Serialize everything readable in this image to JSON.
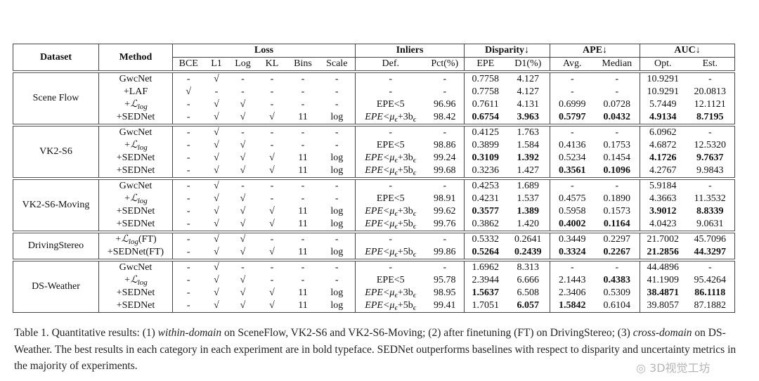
{
  "table": {
    "group_headers": {
      "dataset": "Dataset",
      "method": "Method",
      "loss": "Loss",
      "inliers": "Inliers",
      "disparity": "Disparity↓",
      "ape": "APE↓",
      "auc": "AUC↓"
    },
    "sub_headers": [
      "BCE",
      "L1",
      "Log",
      "KL",
      "Bins",
      "Scale",
      "Def.",
      "Pct(%)",
      "EPE",
      "D1(%)",
      "Avg.",
      "Median",
      "Opt.",
      "Est."
    ],
    "groups": [
      {
        "dataset": "Scene Flow",
        "rows": [
          {
            "method": "GwcNet",
            "cells": [
              "-",
              "√",
              "-",
              "-",
              "-",
              "-",
              "-",
              "-",
              "0.7758",
              "4.127",
              "-",
              "-",
              "10.9291",
              "-"
            ],
            "bold": []
          },
          {
            "method": "+LAF",
            "cells": [
              "√",
              "-",
              "-",
              "-",
              "-",
              "-",
              "-",
              "-",
              "0.7758",
              "4.127",
              "-",
              "-",
              "10.9291",
              "20.0813"
            ],
            "bold": []
          },
          {
            "method": "+ℒ_log",
            "cells": [
              "-",
              "√",
              "√",
              "-",
              "-",
              "-",
              "EPE<5",
              "96.96",
              "0.7611",
              "4.131",
              "0.6999",
              "0.0728",
              "5.7449",
              "12.1121"
            ],
            "bold": []
          },
          {
            "method": "+SEDNet",
            "cells": [
              "-",
              "√",
              "√",
              "√",
              "11",
              "log",
              "EPE<μ_ϵ+3b_ϵ",
              "98.42",
              "0.6754",
              "3.963",
              "0.5797",
              "0.0432",
              "4.9134",
              "8.7195"
            ],
            "bold": [
              8,
              9,
              10,
              11,
              12,
              13
            ]
          }
        ]
      },
      {
        "dataset": "VK2-S6",
        "rows": [
          {
            "method": "GwcNet",
            "cells": [
              "-",
              "√",
              "-",
              "-",
              "-",
              "-",
              "-",
              "-",
              "0.4125",
              "1.763",
              "-",
              "-",
              "6.0962",
              "-"
            ],
            "bold": []
          },
          {
            "method": "+ℒ_log",
            "cells": [
              "-",
              "√",
              "√",
              "-",
              "-",
              "-",
              "EPE<5",
              "98.86",
              "0.3899",
              "1.584",
              "0.4136",
              "0.1753",
              "4.6872",
              "12.5320"
            ],
            "bold": []
          },
          {
            "method": "+SEDNet",
            "cells": [
              "-",
              "√",
              "√",
              "√",
              "11",
              "log",
              "EPE<μ_ϵ+3b_ϵ",
              "99.24",
              "0.3109",
              "1.392",
              "0.5234",
              "0.1454",
              "4.1726",
              "9.7637"
            ],
            "bold": [
              8,
              9,
              12,
              13
            ]
          },
          {
            "method": "+SEDNet",
            "cells": [
              "-",
              "√",
              "√",
              "√",
              "11",
              "log",
              "EPE<μ_ϵ+5b_ϵ",
              "99.68",
              "0.3236",
              "1.427",
              "0.3561",
              "0.1096",
              "4.2767",
              "9.9843"
            ],
            "bold": [
              10,
              11
            ]
          }
        ]
      },
      {
        "dataset": "VK2-S6-Moving",
        "rows": [
          {
            "method": "GwcNet",
            "cells": [
              "-",
              "√",
              "-",
              "-",
              "-",
              "-",
              "-",
              "-",
              "0.4253",
              "1.689",
              "-",
              "-",
              "5.9184",
              "-"
            ],
            "bold": []
          },
          {
            "method": "+ℒ_log",
            "cells": [
              "-",
              "√",
              "√",
              "-",
              "-",
              "-",
              "EPE<5",
              "98.91",
              "0.4231",
              "1.537",
              "0.4575",
              "0.1890",
              "4.3663",
              "11.3532"
            ],
            "bold": []
          },
          {
            "method": "+SEDNet",
            "cells": [
              "-",
              "√",
              "√",
              "√",
              "11",
              "log",
              "EPE<μ_ϵ+3b_ϵ",
              "99.62",
              "0.3577",
              "1.389",
              "0.5958",
              "0.1573",
              "3.9012",
              "8.8339"
            ],
            "bold": [
              8,
              9,
              12,
              13
            ]
          },
          {
            "method": "+SEDNet",
            "cells": [
              "-",
              "√",
              "√",
              "√",
              "11",
              "log",
              "EPE<μ_ϵ+5b_ϵ",
              "99.76",
              "0.3862",
              "1.420",
              "0.4002",
              "0.1164",
              "4.0423",
              "9.0631"
            ],
            "bold": [
              10,
              11
            ]
          }
        ]
      },
      {
        "dataset": "DrivingStereo",
        "rows": [
          {
            "method": "+ℒ_log(FT)",
            "cells": [
              "-",
              "√",
              "√",
              "-",
              "-",
              "-",
              "-",
              "-",
              "0.5332",
              "0.2641",
              "0.3449",
              "0.2297",
              "21.7002",
              "45.7096"
            ],
            "bold": []
          },
          {
            "method": "+SEDNet(FT)",
            "cells": [
              "-",
              "√",
              "√",
              "√",
              "11",
              "log",
              "EPE<μ_ϵ+5b_ϵ",
              "99.86",
              "0.5264",
              "0.2439",
              "0.3324",
              "0.2267",
              "21.2856",
              "44.3297"
            ],
            "bold": [
              8,
              9,
              10,
              11,
              12,
              13
            ]
          }
        ]
      },
      {
        "dataset": "DS-Weather",
        "rows": [
          {
            "method": "GwcNet",
            "cells": [
              "-",
              "√",
              "-",
              "-",
              "-",
              "-",
              "-",
              "-",
              "1.6962",
              "8.313",
              "-",
              "-",
              "44.4896",
              "-"
            ],
            "bold": []
          },
          {
            "method": "+ℒ_log",
            "cells": [
              "-",
              "√",
              "√",
              "-",
              "-",
              "-",
              "EPE<5",
              "95.78",
              "2.3944",
              "6.666",
              "2.1443",
              "0.4383",
              "41.1909",
              "95.4264"
            ],
            "bold": [
              11
            ]
          },
          {
            "method": "+SEDNet",
            "cells": [
              "-",
              "√",
              "√",
              "√",
              "11",
              "log",
              "EPE<μ_ϵ+3b_ϵ",
              "98.95",
              "1.5637",
              "6.508",
              "2.3406",
              "0.5309",
              "38.4871",
              "86.1118"
            ],
            "bold": [
              8,
              12,
              13
            ]
          },
          {
            "method": "+SEDNet",
            "cells": [
              "-",
              "√",
              "√",
              "√",
              "11",
              "log",
              "EPE<μ_ϵ+5b_ϵ",
              "99.41",
              "1.7051",
              "6.057",
              "1.5842",
              "0.6104",
              "39.8057",
              "87.1882"
            ],
            "bold": [
              9,
              10
            ]
          }
        ]
      }
    ]
  },
  "caption": {
    "part1": "Table 1. Quantitative results: (1) ",
    "em1": "within-domain",
    "part2": " on SceneFlow, VK2-S6 and VK2-S6-Moving; (2) after finetuning (FT) on DrivingStereo; (3) ",
    "em2": "cross-domain",
    "part3": " on DS-Weather.  The best results in each category in each experiment are in bold typeface.  SEDNet outperforms baselines with respect to disparity and uncertainty metrics in the majority of experiments."
  },
  "watermark": "3D视觉工坊"
}
